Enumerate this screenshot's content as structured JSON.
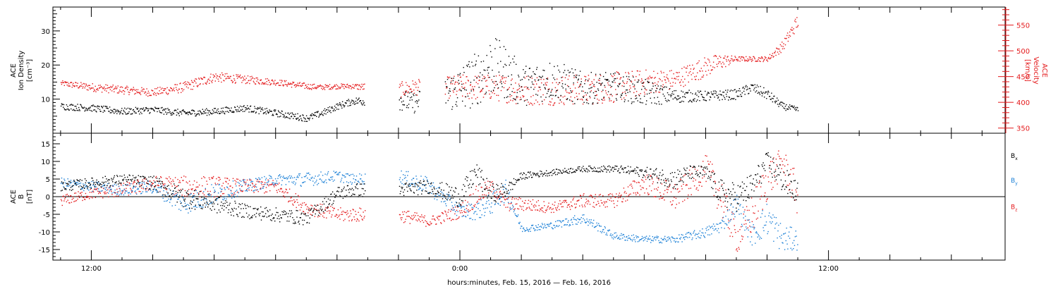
{
  "colors": {
    "black": "#000000",
    "blue": "#1a7fd6",
    "red": "#e41a1c"
  },
  "xaxis": {
    "label": "hours:minutes, Feb. 15, 2016 — Feb. 16, 2016",
    "tick_labels": [
      {
        "hour": 12,
        "text": "12:00"
      },
      {
        "hour": 24,
        "text": "0:00"
      },
      {
        "hour": 36,
        "text": "12:00"
      }
    ],
    "range_hours": [
      10.75,
      41.75
    ],
    "minor_tick_hours": 2
  },
  "chart_data": [
    {
      "type": "scatter",
      "panel": "top",
      "left_axis_label_lines": [
        "ACE",
        "Ion Density",
        "[cm⁻³]"
      ],
      "right_axis_label_lines": [
        "ACE",
        "Velocity",
        "[km/s]"
      ],
      "ylim_left": [
        0,
        37
      ],
      "ylim_right": [
        340,
        585
      ],
      "left_ticks": [
        10,
        20,
        30
      ],
      "right_ticks": [
        350,
        400,
        450,
        500,
        550
      ],
      "data_gaps_hours": [
        [
          20.9,
          22.0
        ],
        [
          22.7,
          23.5
        ]
      ],
      "series": [
        {
          "color": "black",
          "axis": "left",
          "quantity": "Ion Density",
          "x": [
            11.0,
            12.0,
            13.0,
            14.0,
            15.0,
            16.0,
            17.0,
            18.0,
            19.0,
            19.5,
            20.0,
            20.5,
            22.0,
            22.5,
            23.5,
            24.0,
            24.5,
            25.0,
            25.5,
            26.0,
            27.0,
            28.0,
            29.0,
            30.0,
            31.0,
            32.0,
            33.0,
            33.5,
            34.0,
            34.5,
            35.0
          ],
          "y": [
            8.0,
            7.5,
            6.5,
            7.0,
            6.0,
            6.5,
            7.5,
            6.0,
            4.5,
            6.0,
            8.0,
            9.5,
            10.0,
            9.0,
            12.0,
            13.0,
            16.0,
            20.0,
            18.0,
            14.0,
            16.0,
            13.0,
            14.0,
            12.0,
            11.0,
            11.0,
            11.5,
            13.5,
            11.5,
            8.0,
            7.0
          ],
          "spread": [
            1.0,
            1.0,
            1.0,
            1.0,
            1.0,
            1.0,
            1.0,
            1.0,
            1.0,
            1.0,
            1.0,
            1.0,
            3.0,
            3.0,
            5.0,
            7.0,
            8.0,
            9.0,
            8.0,
            6.0,
            6.0,
            5.0,
            4.0,
            4.0,
            2.0,
            1.5,
            1.5,
            1.5,
            1.5,
            1.0,
            0.8
          ]
        },
        {
          "color": "red",
          "axis": "right",
          "quantity": "Velocity",
          "x": [
            11.0,
            12.0,
            13.0,
            14.0,
            15.0,
            16.0,
            17.0,
            18.0,
            19.0,
            19.5,
            20.0,
            20.5,
            22.0,
            22.5,
            23.5,
            24.0,
            25.0,
            26.0,
            27.0,
            28.0,
            29.0,
            30.0,
            31.0,
            32.0,
            32.5,
            33.0,
            34.0,
            34.5,
            35.0
          ],
          "y": [
            438,
            430,
            425,
            420,
            430,
            450,
            445,
            440,
            432,
            430,
            432,
            432,
            425,
            430,
            430,
            430,
            430,
            425,
            425,
            425,
            430,
            440,
            445,
            470,
            480,
            485,
            485,
            510,
            560
          ],
          "spread": [
            5,
            8,
            8,
            8,
            10,
            10,
            8,
            6,
            6,
            5,
            5,
            5,
            15,
            15,
            20,
            25,
            25,
            30,
            30,
            30,
            30,
            25,
            20,
            20,
            15,
            5,
            5,
            10,
            15
          ]
        }
      ]
    },
    {
      "type": "scatter",
      "panel": "bottom",
      "left_axis_label_lines": [
        "ACE",
        "B",
        "[nT]"
      ],
      "ylim": [
        -18,
        18
      ],
      "left_ticks": [
        -15,
        -10,
        -5,
        0,
        5,
        10,
        15
      ],
      "zero_line": true,
      "data_gaps_hours": [
        [
          20.9,
          22.0
        ]
      ],
      "legend": [
        {
          "color": "black",
          "text": "Bx"
        },
        {
          "color": "blue",
          "text": "By"
        },
        {
          "color": "red",
          "text": "Bz"
        }
      ],
      "series": [
        {
          "color": "black",
          "name": "Bx",
          "x": [
            11.0,
            12.0,
            13.0,
            14.0,
            15.0,
            16.0,
            17.0,
            18.0,
            19.0,
            20.0,
            20.5,
            22.0,
            23.0,
            24.0,
            24.5,
            25.0,
            25.5,
            26.0,
            27.0,
            28.0,
            29.0,
            30.0,
            31.0,
            31.5,
            32.0,
            32.5,
            33.0,
            33.5,
            34.0,
            34.5,
            35.0
          ],
          "y": [
            3.0,
            4.0,
            5.0,
            4.0,
            0.0,
            -2.0,
            -4.0,
            -5.0,
            -6.0,
            1.0,
            2.0,
            2.0,
            3.0,
            0.0,
            7.0,
            1.0,
            2.0,
            6.0,
            7.0,
            8.0,
            8.0,
            7.0,
            5.0,
            7.0,
            7.0,
            1.0,
            0.0,
            3.0,
            10.0,
            5.0,
            1.0
          ],
          "spread": [
            1.5,
            1.5,
            1.5,
            2.0,
            3.0,
            2.5,
            2.0,
            2.0,
            2.0,
            2.0,
            2.0,
            2.0,
            2.0,
            3.0,
            3.0,
            3.0,
            2.0,
            1.0,
            0.8,
            0.8,
            1.0,
            1.5,
            3.0,
            2.0,
            2.0,
            4.0,
            4.0,
            4.0,
            3.0,
            4.0,
            3.0
          ]
        },
        {
          "color": "blue",
          "name": "By",
          "x": [
            11.0,
            12.0,
            13.0,
            14.0,
            15.0,
            16.0,
            17.0,
            18.0,
            19.0,
            20.0,
            20.5,
            22.0,
            23.0,
            24.0,
            24.5,
            25.0,
            25.5,
            26.0,
            27.0,
            28.0,
            29.0,
            30.0,
            31.0,
            32.0,
            32.5,
            33.0,
            33.5,
            34.0,
            34.5,
            35.0
          ],
          "y": [
            4.0,
            3.0,
            2.0,
            3.0,
            -2.0,
            1.0,
            3.0,
            5.0,
            5.0,
            6.0,
            5.0,
            6.0,
            3.0,
            -4.0,
            -4.0,
            -2.0,
            2.0,
            -9.0,
            -8.0,
            -6.0,
            -11.0,
            -12.0,
            -12.0,
            -10.0,
            -8.0,
            -2.0,
            -11.0,
            -6.0,
            -12.0,
            -12.0
          ],
          "spread": [
            1.5,
            1.5,
            1.5,
            2.0,
            3.0,
            3.0,
            2.0,
            1.5,
            2.0,
            1.5,
            1.5,
            2.0,
            2.5,
            2.0,
            2.5,
            3.0,
            3.0,
            1.0,
            1.0,
            1.5,
            1.0,
            1.0,
            1.0,
            1.5,
            2.0,
            3.0,
            3.0,
            5.0,
            4.0,
            3.0
          ]
        },
        {
          "color": "red",
          "name": "Bz",
          "x": [
            11.0,
            12.0,
            13.0,
            14.0,
            15.0,
            16.0,
            17.0,
            18.0,
            19.0,
            20.0,
            20.5,
            22.0,
            23.0,
            24.0,
            24.5,
            25.0,
            25.5,
            26.0,
            27.0,
            28.0,
            29.0,
            30.0,
            31.0,
            32.0,
            32.5,
            33.0,
            33.5,
            34.0,
            34.5,
            35.0
          ],
          "y": [
            -1.0,
            1.0,
            2.0,
            4.0,
            3.0,
            3.0,
            3.0,
            3.0,
            -3.0,
            -5.0,
            -5.0,
            -5.0,
            -7.0,
            -4.0,
            0.0,
            3.0,
            -2.0,
            -2.0,
            -3.0,
            -1.0,
            -1.0,
            4.0,
            0.0,
            8.0,
            0.0,
            -12.0,
            -5.0,
            5.0,
            10.0,
            0.0
          ],
          "spread": [
            1.5,
            1.5,
            2.0,
            2.0,
            3.0,
            3.0,
            2.0,
            2.0,
            2.0,
            2.0,
            2.0,
            2.0,
            1.5,
            2.0,
            3.0,
            2.0,
            2.0,
            2.0,
            1.5,
            2.0,
            2.0,
            3.0,
            4.0,
            4.0,
            6.0,
            4.0,
            6.0,
            6.0,
            4.0,
            6.0
          ]
        }
      ]
    }
  ]
}
